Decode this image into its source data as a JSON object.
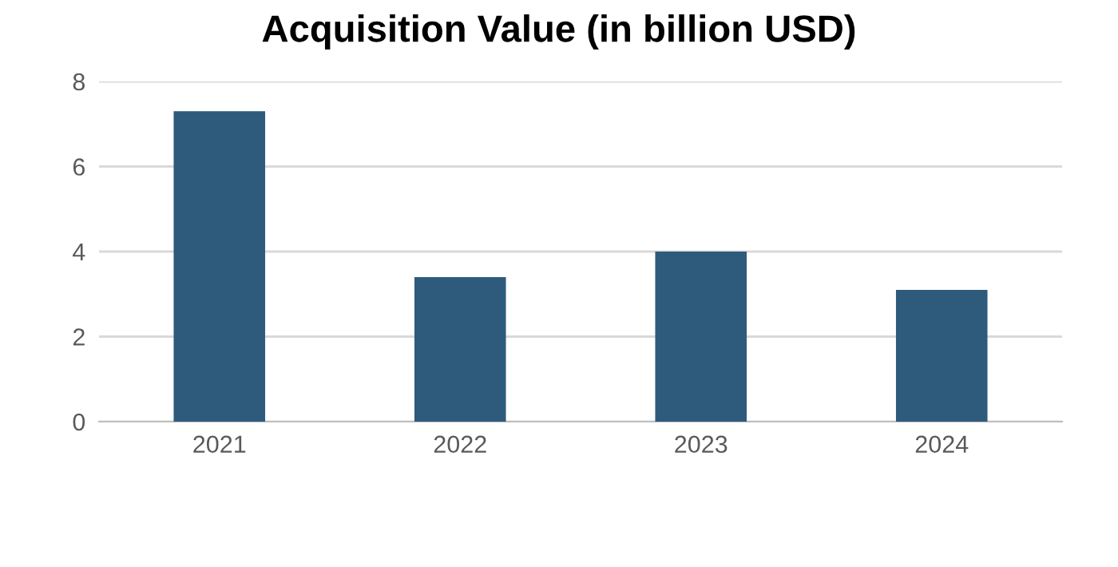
{
  "chart_data": {
    "type": "bar",
    "title": "Acquisition Value (in billion USD)",
    "categories": [
      "2021",
      "2022",
      "2023",
      "2024"
    ],
    "values": [
      7.3,
      3.4,
      4.0,
      3.1
    ],
    "color": "#2e5b7c",
    "ylim": [
      0,
      8
    ],
    "yticks": [
      0,
      2,
      4,
      6,
      8
    ],
    "grid": "y"
  }
}
